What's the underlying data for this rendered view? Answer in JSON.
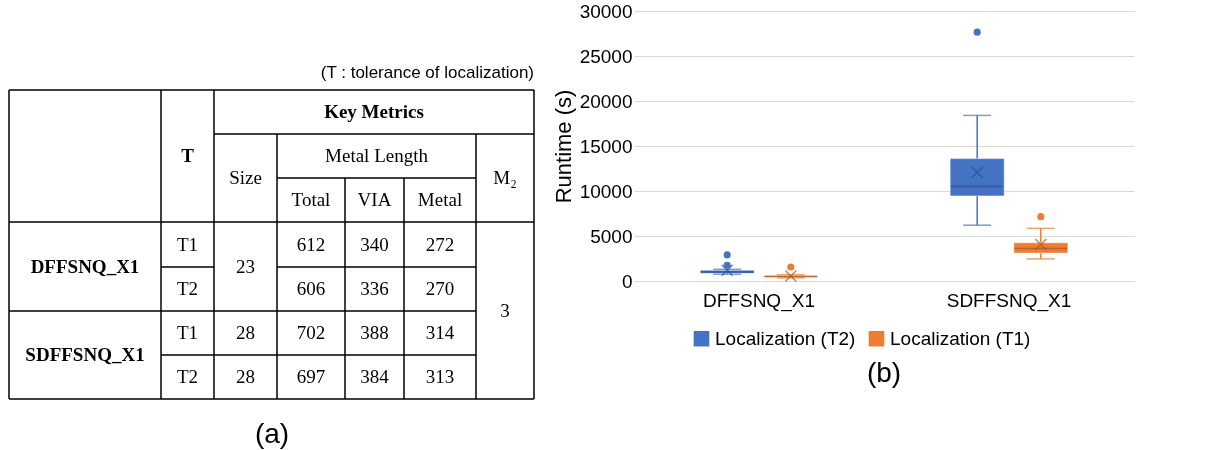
{
  "chart_data": [
    {
      "type": "other",
      "annotations": [
        "(T : tolerance of localization)",
        "T",
        "Key Metrics",
        "Size",
        "Metal Length",
        "Total",
        "VIA",
        "Metal",
        "M₂",
        "DFFSNQ_X1",
        "T1",
        "23",
        "612",
        "340",
        "272",
        "T2",
        "606",
        "336",
        "270",
        "3",
        "SDFFSNQ_X1",
        "T1",
        "28",
        "702",
        "388",
        "314",
        "T2",
        "28",
        "697",
        "384",
        "313",
        "(a)"
      ]
    },
    {
      "type": "box",
      "categories": [
        "DFFSNQ_X1",
        "SDFFSNQ_X1"
      ],
      "series": [
        {
          "name": "Localization (T2)",
          "color": "#4472c4",
          "boxes": [
            {
              "low": 750,
              "q1": 850,
              "median": 1000,
              "q3": 1200,
              "high": 1300,
              "mean": 1200,
              "outliers": [
                1750,
                2900
              ]
            },
            {
              "low": 6200,
              "q1": 9450,
              "median": 10500,
              "q3": 13600,
              "high": 18400,
              "mean": 12050,
              "outliers": [
                27650
              ]
            }
          ]
        },
        {
          "name": "Localization (T1)",
          "color": "#ed7d31",
          "boxes": [
            {
              "low": 350,
              "q1": 420,
              "median": 500,
              "q3": 600,
              "high": 700,
              "mean": 550,
              "outliers": [
                1550
              ]
            },
            {
              "low": 2450,
              "q1": 3100,
              "median": 3600,
              "q3": 4250,
              "high": 5850,
              "mean": 4050,
              "outliers": [
                7150
              ]
            }
          ]
        }
      ],
      "ylabel": "Runtime (s)",
      "ylim": [
        0,
        30000
      ],
      "yticks": [
        0,
        5000,
        10000,
        15000,
        20000,
        25000,
        30000
      ],
      "grid": "y",
      "legend": "bottom",
      "annotations": [
        "(b)"
      ]
    }
  ]
}
